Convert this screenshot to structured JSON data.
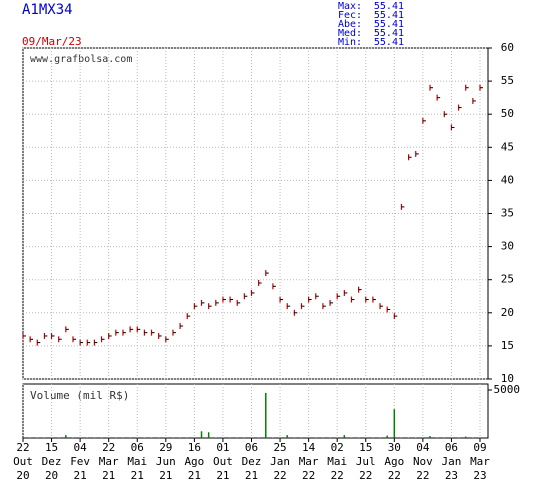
{
  "chart_data": {
    "type": "stock",
    "title": "A1MX34",
    "date": "09/Mar/23",
    "watermark": "www.grafbolsa.com",
    "stats": [
      {
        "label": "Max:",
        "value": "55.41"
      },
      {
        "label": "Fec:",
        "value": "55.41"
      },
      {
        "label": "Abe:",
        "value": "55.41"
      },
      {
        "label": "Med:",
        "value": "55.41"
      },
      {
        "label": "Min:",
        "value": "55.41"
      }
    ],
    "x_labels": [
      [
        "22",
        "Out",
        "20"
      ],
      [
        "15",
        "Dez",
        "20"
      ],
      [
        "04",
        "Fev",
        "21"
      ],
      [
        "22",
        "Mar",
        "21"
      ],
      [
        "06",
        "Mai",
        "21"
      ],
      [
        "29",
        "Jun",
        "21"
      ],
      [
        "16",
        "Ago",
        "21"
      ],
      [
        "01",
        "Out",
        "21"
      ],
      [
        "06",
        "Dez",
        "21"
      ],
      [
        "25",
        "Jan",
        "22"
      ],
      [
        "14",
        "Mar",
        "22"
      ],
      [
        "02",
        "Mai",
        "22"
      ],
      [
        "15",
        "Jul",
        "22"
      ],
      [
        "30",
        "Ago",
        "22"
      ],
      [
        "04",
        "Nov",
        "22"
      ],
      [
        "06",
        "Jan",
        "23"
      ],
      [
        "09",
        "Mar",
        "23"
      ]
    ],
    "points_per_label": 4,
    "values": [
      16.5,
      16,
      15.5,
      16.5,
      16.5,
      16,
      17.5,
      16,
      15.5,
      15.5,
      15.5,
      16,
      16.5,
      17,
      17,
      17.5,
      17.5,
      17,
      17,
      16.5,
      16,
      17,
      18,
      19.5,
      21,
      21.5,
      21,
      21.5,
      22,
      22,
      21.5,
      22.5,
      23,
      24.5,
      26,
      24,
      22,
      21,
      20,
      21,
      22,
      22.5,
      21,
      21.5,
      22.5,
      23,
      22,
      23.5,
      22,
      22,
      21,
      20.5,
      19.5,
      36,
      43.5,
      44,
      49,
      54,
      52.5,
      50,
      48,
      51,
      54,
      52,
      54
    ],
    "color": "#cc0000",
    "ylim": [
      10,
      60
    ],
    "yticks": [
      10,
      15,
      20,
      25,
      30,
      35,
      40,
      45,
      50,
      55,
      60
    ],
    "volume_label": "Volume (mil R$)",
    "volume": [
      50,
      50,
      50,
      50,
      50,
      50,
      300,
      50,
      50,
      50,
      50,
      50,
      50,
      50,
      50,
      50,
      50,
      50,
      50,
      50,
      50,
      50,
      50,
      50,
      50,
      700,
      600,
      50,
      50,
      50,
      50,
      50,
      50,
      50,
      4700,
      50,
      50,
      300,
      50,
      50,
      50,
      50,
      50,
      50,
      50,
      300,
      50,
      50,
      50,
      50,
      50,
      250,
      3000,
      50,
      50,
      50,
      50,
      200,
      50,
      50,
      50,
      50,
      150,
      50,
      50
    ],
    "volume_color": "#008000",
    "vlim": [
      0,
      5000
    ],
    "vticks": [
      5000
    ],
    "grid": true
  }
}
